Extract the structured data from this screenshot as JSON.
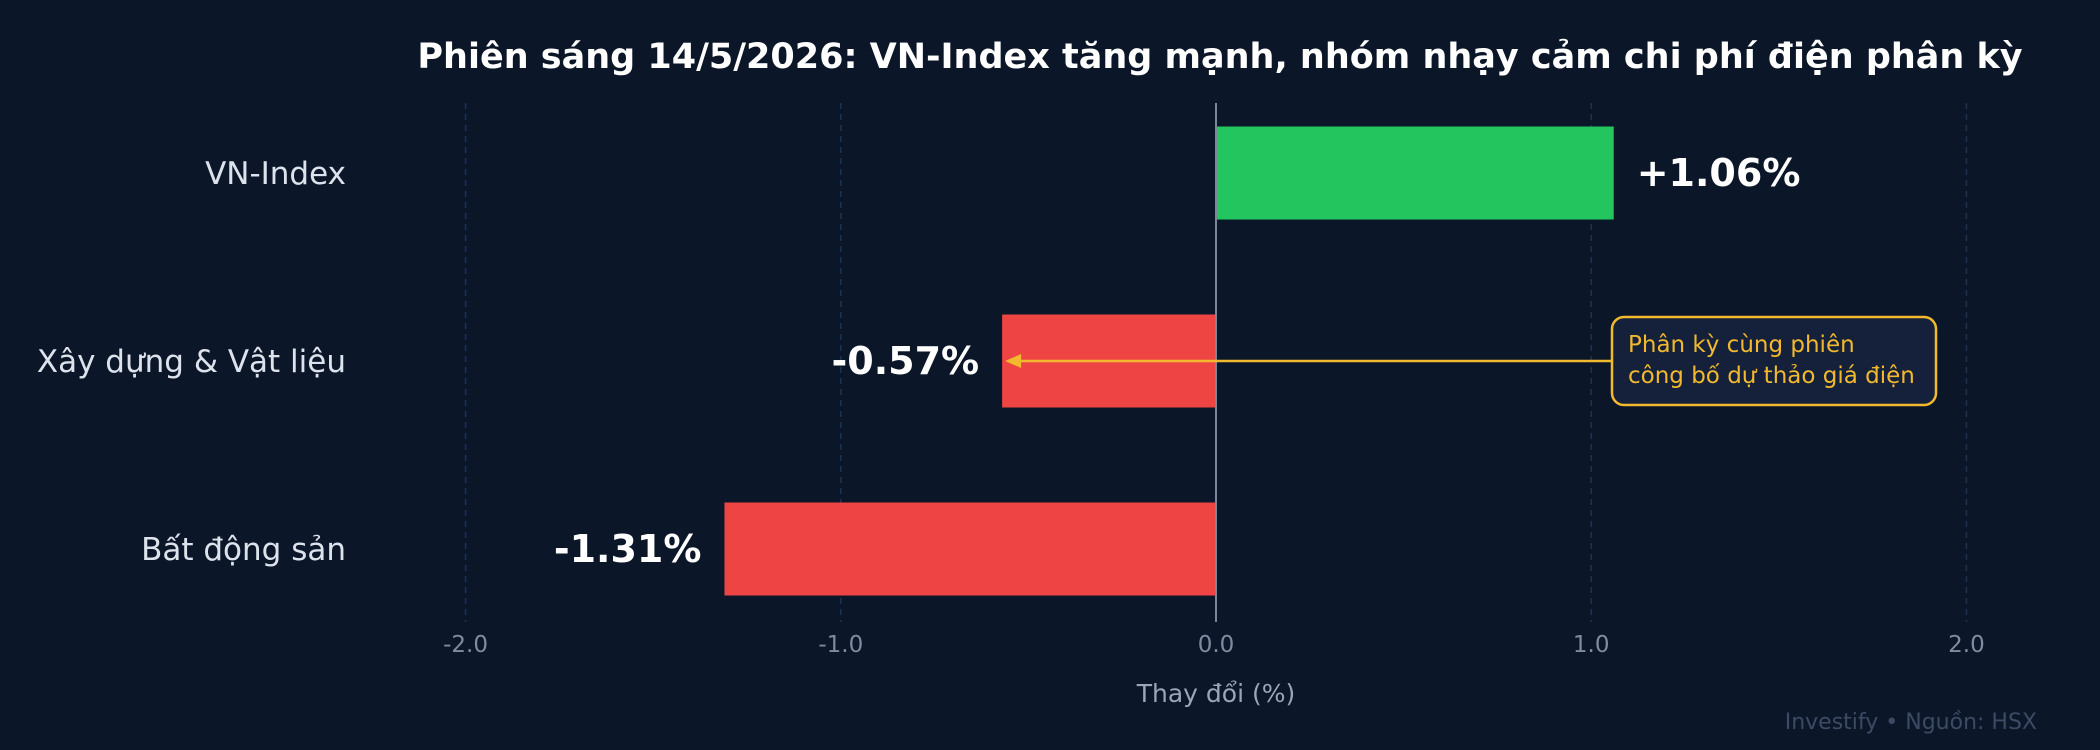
{
  "chart_data": {
    "type": "bar",
    "orientation": "horizontal",
    "title": "Phiên sáng 14/5/2026: VN-Index tăng mạnh, nhóm nhạy cảm chi phí điện phân kỳ",
    "xlabel": "Thay đổi (%)",
    "ylabel": "",
    "categories": [
      "VN-Index",
      "Xây dựng & Vật liệu",
      "Bất động sản"
    ],
    "values": [
      1.06,
      -0.57,
      -1.31
    ],
    "value_labels": [
      "+1.06%",
      "-0.57%",
      "-1.31%"
    ],
    "xlim": [
      -2.3,
      2.3
    ],
    "xticks": [
      -2.0,
      -1.0,
      0.0,
      1.0,
      2.0
    ],
    "xtick_labels": [
      "-2.0",
      "-1.0",
      "0.0",
      "1.0",
      "2.0"
    ],
    "grid": "vertical dashed",
    "colors": {
      "positive": "#22c55e",
      "negative": "#ef4444",
      "annotation": "#f2b92e",
      "background": "#0b1628"
    },
    "annotation": {
      "target_category": "Xây dựng & Vật liệu",
      "lines": [
        "Phân kỳ cùng phiên",
        "công bố dự thảo giá điện"
      ]
    },
    "footer": {
      "brand": "Investify",
      "separator": "•",
      "source": "Nguồn: HSX"
    }
  }
}
